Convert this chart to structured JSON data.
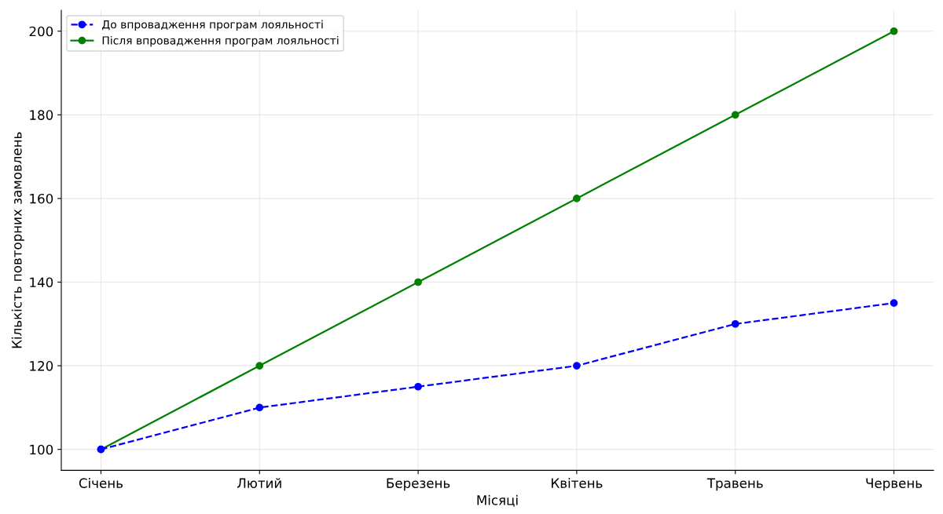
{
  "chart_data": {
    "type": "line",
    "xlabel": "Місяці",
    "ylabel": "Кількість повторних замовлень",
    "categories": [
      "Січень",
      "Лютий",
      "Березень",
      "Квітень",
      "Травень",
      "Червень"
    ],
    "series": [
      {
        "name": "До впровадження програм лояльності",
        "color": "#0000ff",
        "line_style": "dashed",
        "marker": "circle",
        "values": [
          100,
          110,
          115,
          120,
          130,
          135
        ]
      },
      {
        "name": "Після впровадження програм лояльності",
        "color": "#008000",
        "line_style": "solid",
        "marker": "circle",
        "values": [
          100,
          120,
          140,
          160,
          180,
          200
        ]
      }
    ],
    "ylim": [
      95,
      205
    ],
    "yticks": [
      100,
      120,
      140,
      160,
      180,
      200
    ],
    "grid": true,
    "legend": "top left"
  }
}
